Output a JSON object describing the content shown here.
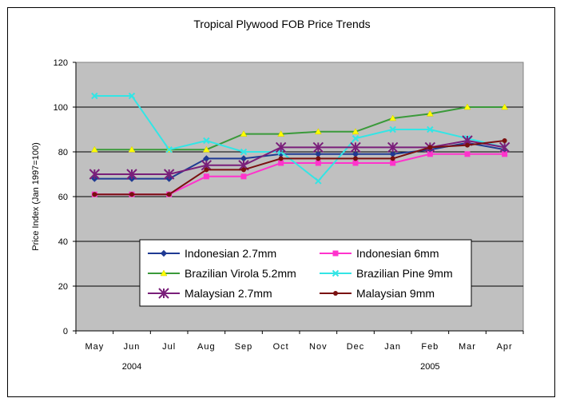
{
  "chart_data": {
    "type": "line",
    "title": "Tropical Plywood FOB Price Trends",
    "ylabel": "Price Index (Jan 1997=100)",
    "xlabel": "",
    "ylim": [
      0,
      120
    ],
    "yticks": [
      "0",
      "20",
      "40",
      "60",
      "80",
      "100",
      "120"
    ],
    "grid": "horizontal",
    "categories": [
      "May",
      "Jun",
      "Jul",
      "Aug",
      "Sep",
      "Oct",
      "Nov",
      "Dec",
      "Jan",
      "Feb",
      "Mar",
      "Apr"
    ],
    "year_labels": [
      {
        "label": "2004",
        "under": "Jun"
      },
      {
        "label": "2005",
        "under": "Feb"
      }
    ],
    "legend_position": "bottom-center, inside plot",
    "series": [
      {
        "name": "Indonesian 2.7mm",
        "color": "#1f3a93",
        "marker": "diamond",
        "values": [
          68,
          68,
          68,
          77,
          77,
          79,
          79,
          79,
          79,
          81,
          84,
          81
        ]
      },
      {
        "name": "Indonesian 6mm",
        "color": "#ff33cc",
        "marker": "square",
        "values": [
          61,
          61,
          61,
          69,
          69,
          75,
          75,
          75,
          75,
          79,
          79,
          79
        ]
      },
      {
        "name": "Brazilian Virola 5.2mm",
        "color": "#3a9a3a",
        "marker": "triangle",
        "values": [
          81,
          81,
          81,
          81,
          88,
          88,
          89,
          89,
          95,
          97,
          100,
          100
        ]
      },
      {
        "name": "Brazilian Pine 9mm",
        "color": "#33e5e5",
        "marker": "x",
        "values": [
          105,
          105,
          81,
          85,
          80,
          80,
          67,
          86,
          90,
          90,
          86,
          82
        ]
      },
      {
        "name": "Malaysian 2.7mm",
        "color": "#7a1f7a",
        "marker": "star",
        "values": [
          70,
          70,
          70,
          74,
          74,
          82,
          82,
          82,
          82,
          82,
          85,
          82
        ]
      },
      {
        "name": "Malaysian 9mm",
        "color": "#7a1010",
        "marker": "circle",
        "values": [
          61,
          61,
          61,
          72,
          72,
          77,
          77,
          77,
          77,
          82,
          83,
          85
        ]
      }
    ]
  }
}
